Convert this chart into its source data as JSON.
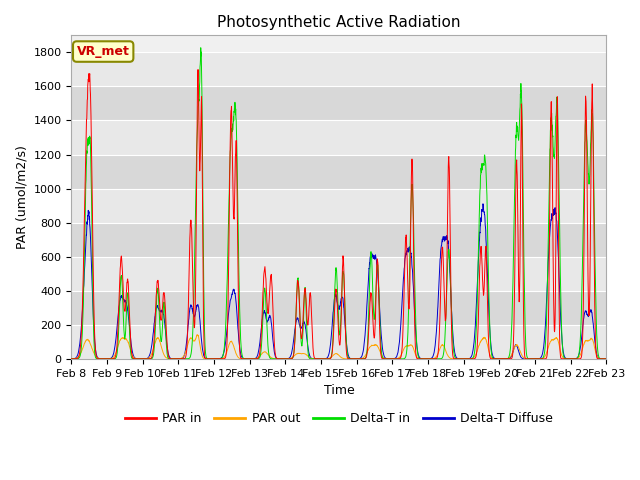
{
  "title": "Photosynthetic Active Radiation",
  "ylabel": "PAR (umol/m2/s)",
  "xlabel": "Time",
  "label_tag": "VR_met",
  "legend_entries": [
    "PAR in",
    "PAR out",
    "Delta-T in",
    "Delta-T Diffuse"
  ],
  "line_colors": [
    "#ff0000",
    "#ffa500",
    "#00dd00",
    "#0000cc"
  ],
  "background_color_outer": "#f0f0f0",
  "background_color_inner": "#e0e0e0",
  "ylim": [
    0,
    1900
  ],
  "yticks": [
    0,
    200,
    400,
    600,
    800,
    1000,
    1200,
    1400,
    1600,
    1800
  ],
  "xtick_labels": [
    "Feb 8",
    "Feb 9",
    "Feb 10",
    "Feb 11",
    "Feb 12",
    "Feb 13",
    "Feb 14",
    "Feb 15",
    "Feb 16",
    "Feb 17",
    "Feb 18",
    "Feb 19",
    "Feb 20",
    "Feb 21",
    "Feb 22",
    "Feb 23"
  ],
  "n_days": 15,
  "pts_per_day": 144
}
